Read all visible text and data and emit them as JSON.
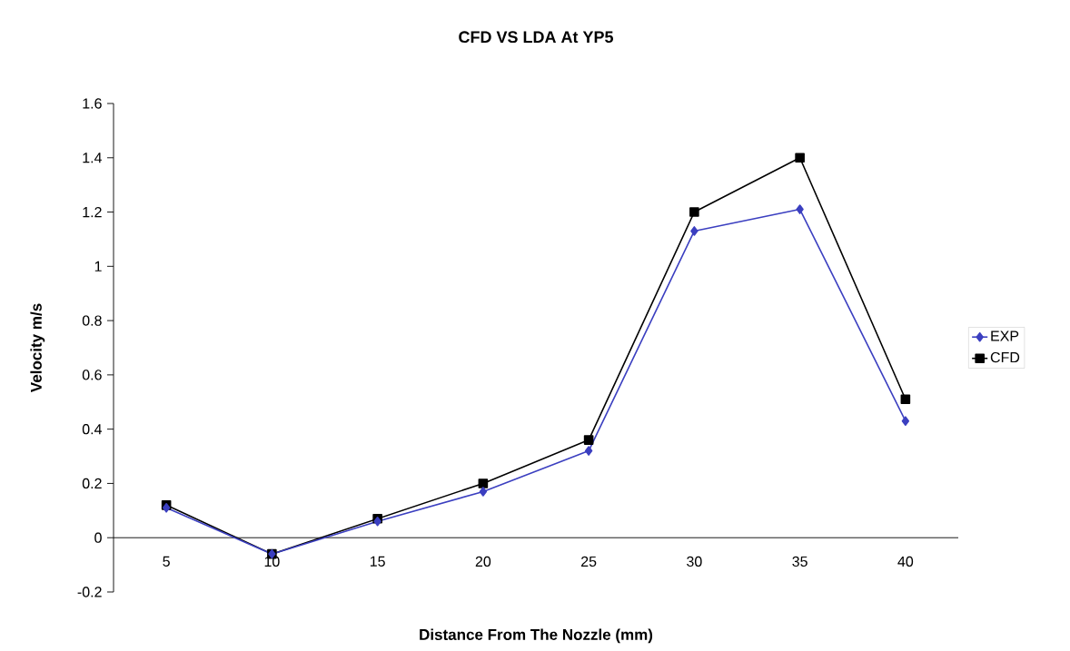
{
  "chart_data": {
    "type": "line",
    "title": "CFD VS LDA At YP5",
    "xlabel": "Distance From The Nozzle (mm)",
    "ylabel": "Velocity m/s",
    "categories": [
      "5",
      "10",
      "15",
      "20",
      "25",
      "30",
      "35",
      "40"
    ],
    "series": [
      {
        "name": "EXP",
        "color": "#3b3fc0",
        "marker": "diamond",
        "values": [
          0.11,
          -0.06,
          0.06,
          0.17,
          0.32,
          1.13,
          1.21,
          0.43
        ]
      },
      {
        "name": "CFD",
        "color": "#000000",
        "marker": "square",
        "values": [
          0.12,
          -0.06,
          0.07,
          0.2,
          0.36,
          1.2,
          1.4,
          0.51
        ]
      }
    ],
    "ylim": [
      -0.2,
      1.6
    ],
    "yticks": [
      -0.2,
      0,
      0.2,
      0.4,
      0.6,
      0.8,
      1,
      1.2,
      1.4,
      1.6
    ],
    "legend": "right",
    "line_style": "solid"
  }
}
